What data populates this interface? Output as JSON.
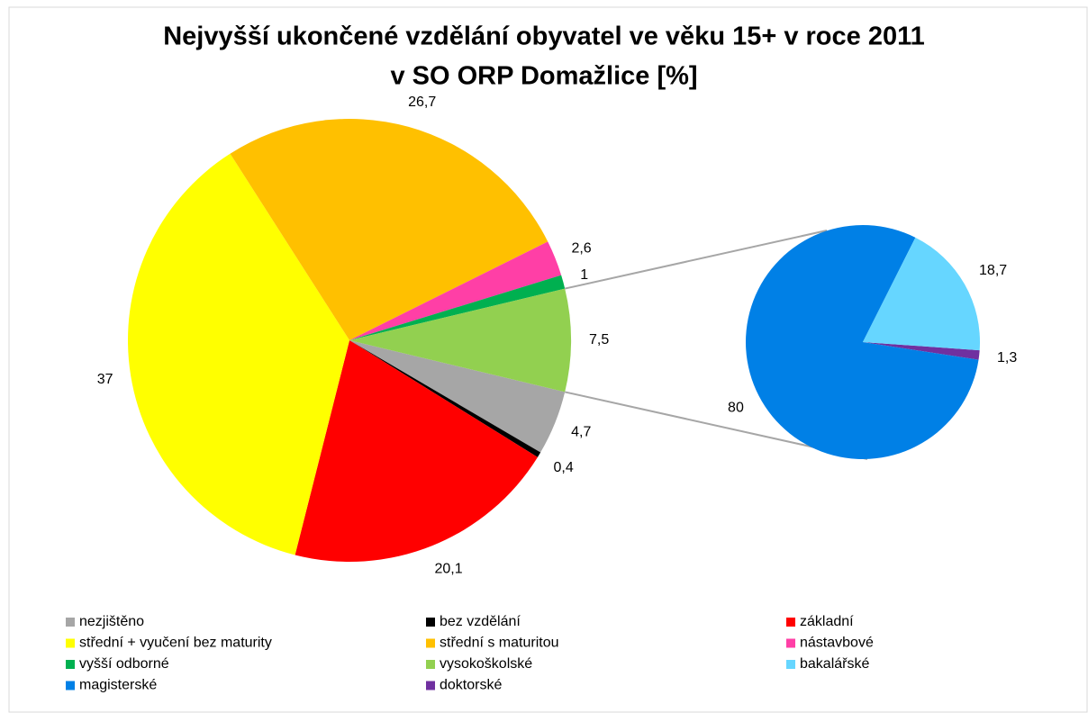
{
  "chart_data": {
    "type": "pie-of-pie",
    "title": [
      "Nejvyšší ukončené vzdělání obyvatel ve věku 15+ v roce 2011",
      "v SO ORP Domažlice [%]"
    ],
    "categories": [
      "nezjištěno",
      "bez vzdělání",
      "základní",
      "střední + vyučení bez maturity",
      "střední s maturitou",
      "nástavbové",
      "vyšší odborné",
      "vysokoškolské"
    ],
    "values": [
      4.7,
      0.4,
      20.1,
      37,
      26.7,
      2.6,
      1,
      7.5
    ],
    "value_labels": [
      "4,7",
      "0,4",
      "20,1",
      "37",
      "26,7",
      "2,6",
      "1",
      "7,5"
    ],
    "colors": [
      "#a6a6a6",
      "#000000",
      "#ff0000",
      "#ffff00",
      "#ffc000",
      "#ff3fa6",
      "#00b050",
      "#92d050"
    ],
    "secondary": {
      "categories": [
        "bakalářské",
        "magisterské",
        "doktorské"
      ],
      "values": [
        18.7,
        80,
        1.3
      ],
      "value_labels": [
        "18,7",
        "80",
        "1,3"
      ],
      "colors": [
        "#66d6ff",
        "#0080e6",
        "#7030a0"
      ]
    }
  }
}
